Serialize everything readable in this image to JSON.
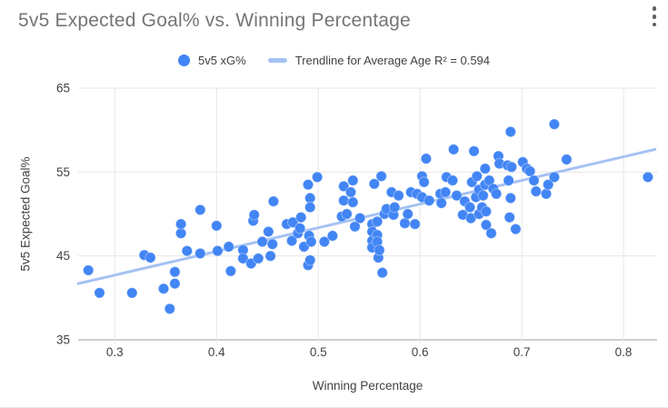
{
  "header": {
    "title": "5v5 Expected Goal% vs. Winning Percentage"
  },
  "menu": {
    "icon": "kebab-menu-icon"
  },
  "legend": {
    "series_label": "5v5 xG%",
    "trendline_label": "Trendline for Average Age R² = 0.594",
    "series_color": "#4285F4",
    "trendline_color": "#A4C2F4"
  },
  "colors": {
    "series": "#4285F4",
    "trendline": "#A4C2F4",
    "gridline": "#e6e6e6",
    "axis_line": "#9e9e9e",
    "tick_label": "#424242",
    "title_text": "#757575"
  },
  "chart_data": {
    "type": "scatter",
    "title": "5v5 Expected Goal% vs. Winning Percentage",
    "xlabel": "Winning Percentage",
    "ylabel": "5v5 Expected Goal%",
    "xlim": [
      0.264,
      0.833
    ],
    "ylim": [
      35,
      65
    ],
    "x_ticks": [
      0.3,
      0.4,
      0.5,
      0.6,
      0.7,
      0.8
    ],
    "y_ticks": [
      35,
      45,
      55,
      65
    ],
    "grid": true,
    "legend_position": "top",
    "series": [
      {
        "name": "5v5 xG%",
        "color": "#4285F4",
        "points": [
          [
            0.274,
            43.3
          ],
          [
            0.285,
            40.6
          ],
          [
            0.317,
            40.6
          ],
          [
            0.329,
            45.1
          ],
          [
            0.335,
            44.8
          ],
          [
            0.348,
            41.1
          ],
          [
            0.354,
            38.7
          ],
          [
            0.359,
            43.1
          ],
          [
            0.359,
            41.7
          ],
          [
            0.365,
            47.7
          ],
          [
            0.365,
            48.8
          ],
          [
            0.371,
            45.6
          ],
          [
            0.384,
            50.5
          ],
          [
            0.384,
            45.3
          ],
          [
            0.4,
            48.6
          ],
          [
            0.401,
            45.6
          ],
          [
            0.412,
            46.1
          ],
          [
            0.414,
            43.2
          ],
          [
            0.426,
            45.7
          ],
          [
            0.426,
            44.7
          ],
          [
            0.434,
            44.1
          ],
          [
            0.436,
            49.2
          ],
          [
            0.437,
            49.9
          ],
          [
            0.441,
            44.7
          ],
          [
            0.445,
            46.7
          ],
          [
            0.451,
            47.9
          ],
          [
            0.453,
            45.0
          ],
          [
            0.455,
            46.4
          ],
          [
            0.456,
            51.5
          ],
          [
            0.469,
            48.8
          ],
          [
            0.474,
            46.8
          ],
          [
            0.475,
            49.0
          ],
          [
            0.48,
            47.7
          ],
          [
            0.482,
            48.3
          ],
          [
            0.483,
            49.6
          ],
          [
            0.486,
            46.1
          ],
          [
            0.49,
            43.9
          ],
          [
            0.49,
            53.5
          ],
          [
            0.491,
            47.4
          ],
          [
            0.492,
            44.5
          ],
          [
            0.492,
            51.9
          ],
          [
            0.492,
            50.8
          ],
          [
            0.493,
            46.7
          ],
          [
            0.499,
            54.4
          ],
          [
            0.506,
            46.7
          ],
          [
            0.514,
            47.4
          ],
          [
            0.523,
            49.7
          ],
          [
            0.525,
            53.3
          ],
          [
            0.525,
            51.6
          ],
          [
            0.528,
            50.0
          ],
          [
            0.532,
            52.6
          ],
          [
            0.534,
            54.0
          ],
          [
            0.534,
            51.4
          ],
          [
            0.536,
            48.5
          ],
          [
            0.541,
            49.5
          ],
          [
            0.553,
            48.8
          ],
          [
            0.553,
            47.9
          ],
          [
            0.553,
            46.8
          ],
          [
            0.553,
            46.0
          ],
          [
            0.555,
            53.6
          ],
          [
            0.558,
            49.1
          ],
          [
            0.558,
            47.5
          ],
          [
            0.558,
            46.7
          ],
          [
            0.559,
            44.8
          ],
          [
            0.56,
            45.7
          ],
          [
            0.562,
            54.5
          ],
          [
            0.563,
            43.0
          ],
          [
            0.565,
            50.0
          ],
          [
            0.567,
            50.6
          ],
          [
            0.572,
            52.6
          ],
          [
            0.574,
            49.9
          ],
          [
            0.575,
            50.8
          ],
          [
            0.579,
            52.2
          ],
          [
            0.585,
            48.9
          ],
          [
            0.588,
            50.0
          ],
          [
            0.591,
            52.6
          ],
          [
            0.595,
            48.8
          ],
          [
            0.597,
            52.4
          ],
          [
            0.602,
            54.5
          ],
          [
            0.602,
            52.0
          ],
          [
            0.604,
            53.8
          ],
          [
            0.606,
            56.6
          ],
          [
            0.609,
            51.6
          ],
          [
            0.62,
            52.4
          ],
          [
            0.621,
            51.3
          ],
          [
            0.625,
            52.6
          ],
          [
            0.626,
            54.4
          ],
          [
            0.632,
            54.0
          ],
          [
            0.633,
            57.7
          ],
          [
            0.636,
            52.2
          ],
          [
            0.642,
            49.9
          ],
          [
            0.644,
            51.5
          ],
          [
            0.649,
            50.8
          ],
          [
            0.65,
            49.5
          ],
          [
            0.651,
            53.8
          ],
          [
            0.653,
            57.5
          ],
          [
            0.655,
            52.0
          ],
          [
            0.656,
            54.5
          ],
          [
            0.658,
            52.9
          ],
          [
            0.658,
            50.0
          ],
          [
            0.661,
            50.8
          ],
          [
            0.662,
            52.2
          ],
          [
            0.664,
            55.4
          ],
          [
            0.664,
            53.5
          ],
          [
            0.665,
            48.7
          ],
          [
            0.665,
            50.3
          ],
          [
            0.668,
            54.0
          ],
          [
            0.67,
            47.7
          ],
          [
            0.672,
            53.0
          ],
          [
            0.675,
            52.4
          ],
          [
            0.677,
            56.9
          ],
          [
            0.678,
            56.0
          ],
          [
            0.686,
            55.8
          ],
          [
            0.687,
            54.0
          ],
          [
            0.688,
            49.6
          ],
          [
            0.689,
            59.8
          ],
          [
            0.689,
            51.9
          ],
          [
            0.69,
            55.6
          ],
          [
            0.694,
            48.2
          ],
          [
            0.701,
            56.2
          ],
          [
            0.705,
            55.4
          ],
          [
            0.708,
            55.1
          ],
          [
            0.712,
            54.0
          ],
          [
            0.714,
            52.7
          ],
          [
            0.724,
            52.4
          ],
          [
            0.726,
            53.5
          ],
          [
            0.732,
            60.7
          ],
          [
            0.732,
            54.4
          ],
          [
            0.744,
            56.5
          ],
          [
            0.824,
            54.4
          ]
        ]
      }
    ],
    "trendline": {
      "label": "Trendline for Average Age",
      "r_squared": 0.594,
      "color": "#A4C2F4",
      "start": [
        0.264,
        41.7
      ],
      "end": [
        0.831,
        57.7
      ]
    }
  }
}
